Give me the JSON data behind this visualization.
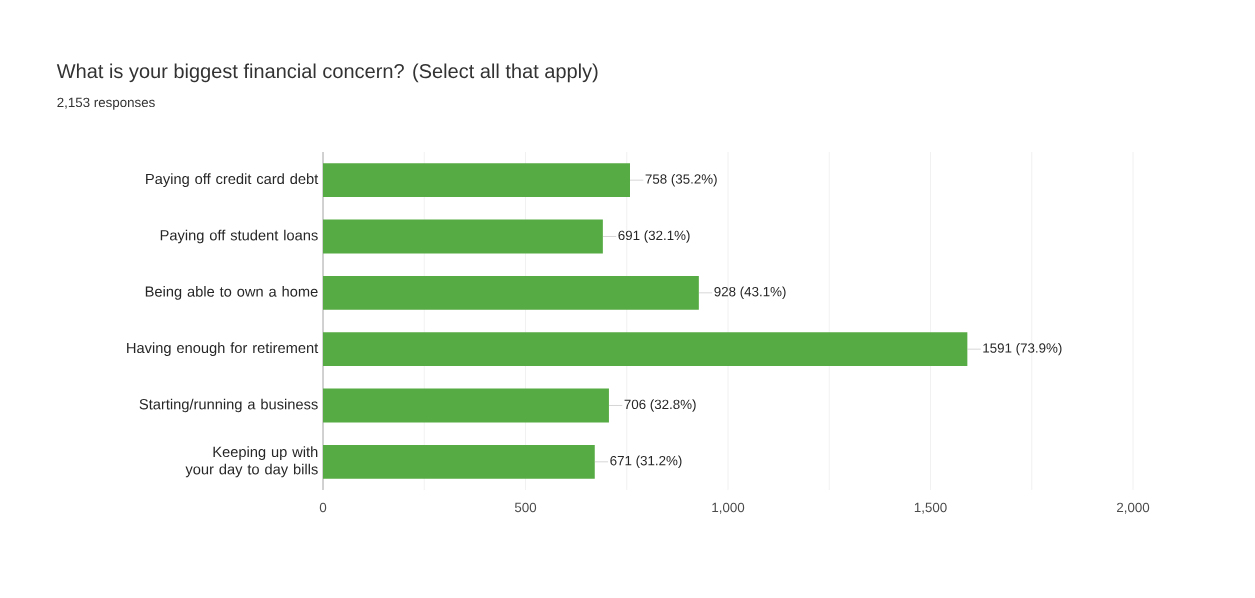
{
  "chart_data": {
    "type": "bar",
    "orientation": "horizontal",
    "title": "What is your biggest financial concern? (Select all that apply)",
    "subtitle": "2,153 responses",
    "categories": [
      "Paying off credit card debt",
      "Paying off student loans",
      "Being able to own a home",
      "Having enough for retirement",
      "Starting/running a business",
      "Keeping up with your day to day bills"
    ],
    "values": [
      758,
      691,
      928,
      1591,
      706,
      671
    ],
    "value_labels": [
      "758 (35.2%)",
      "691 (32.1%)",
      "928 (43.1%)",
      "1591 (73.9%)",
      "706 (32.8%)",
      "671 (31.2%)"
    ],
    "color": "#57ab44",
    "xlim": [
      0,
      2000
    ],
    "xticks": [
      0,
      {
        "value": 250,
        "label": null
      },
      500,
      {
        "value": 750,
        "label": null
      },
      {
        "value": 1000,
        "label": "1,000"
      },
      {
        "value": 1250,
        "label": null
      },
      {
        "value": 1500,
        "label": "1,500"
      },
      {
        "value": 1750,
        "label": null
      },
      {
        "value": 2000,
        "label": "2,000"
      }
    ],
    "grid": "x"
  }
}
